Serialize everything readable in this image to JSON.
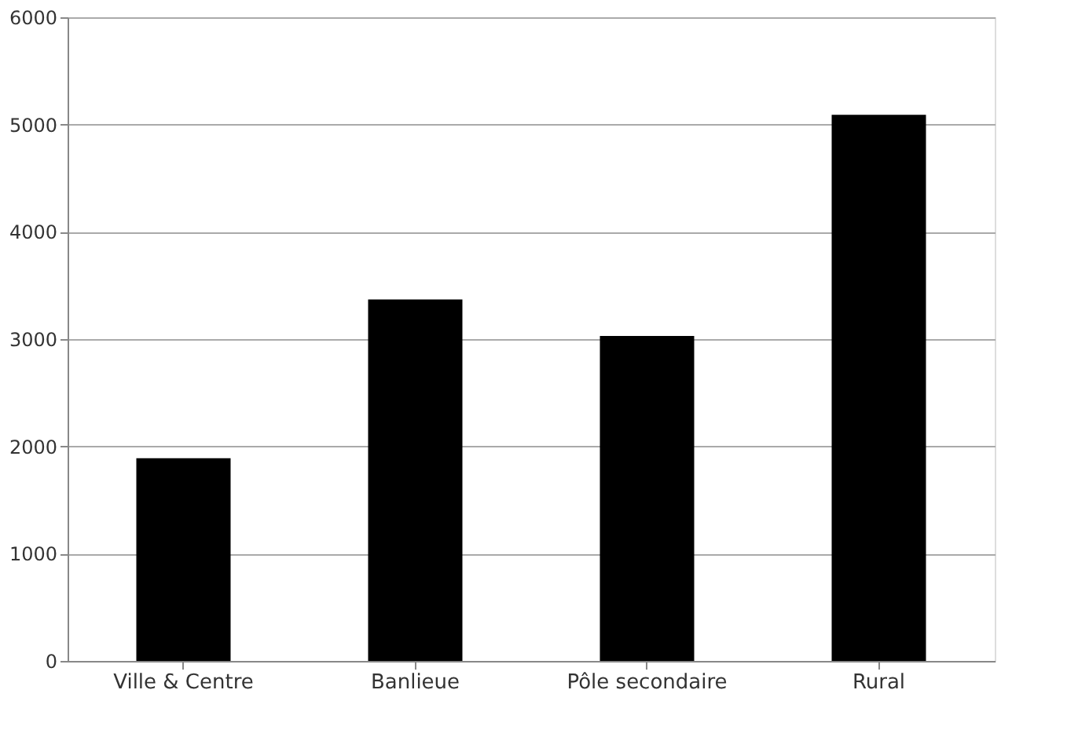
{
  "chart_data": {
    "type": "bar",
    "categories": [
      "Ville & Centre",
      "Banlieue",
      "Pôle secondaire",
      "Rural"
    ],
    "values": [
      1890,
      3370,
      3030,
      5090
    ],
    "color": "#000000",
    "ylim": [
      0,
      6000
    ],
    "yticks": [
      0,
      1000,
      2000,
      3000,
      4000,
      5000,
      6000
    ],
    "grid": "y"
  }
}
